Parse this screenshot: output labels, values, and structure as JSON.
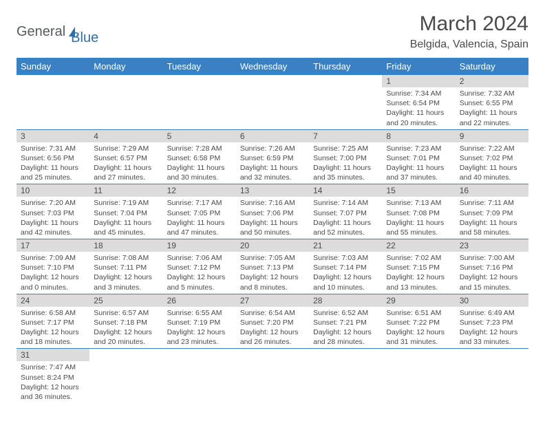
{
  "logo": {
    "part1": "General",
    "part2": "Blue"
  },
  "title": "March 2024",
  "location": "Belgida, Valencia, Spain",
  "colors": {
    "header_bg": "#3a81c4",
    "header_fg": "#ffffff",
    "daynum_bg": "#dcdcdc",
    "text": "#4a4a4a",
    "border": "#3a81c4"
  },
  "weekdays": [
    "Sunday",
    "Monday",
    "Tuesday",
    "Wednesday",
    "Thursday",
    "Friday",
    "Saturday"
  ],
  "weeks": [
    [
      null,
      null,
      null,
      null,
      null,
      {
        "n": "1",
        "sr": "Sunrise: 7:34 AM",
        "ss": "Sunset: 6:54 PM",
        "d1": "Daylight: 11 hours",
        "d2": "and 20 minutes."
      },
      {
        "n": "2",
        "sr": "Sunrise: 7:32 AM",
        "ss": "Sunset: 6:55 PM",
        "d1": "Daylight: 11 hours",
        "d2": "and 22 minutes."
      }
    ],
    [
      {
        "n": "3",
        "sr": "Sunrise: 7:31 AM",
        "ss": "Sunset: 6:56 PM",
        "d1": "Daylight: 11 hours",
        "d2": "and 25 minutes."
      },
      {
        "n": "4",
        "sr": "Sunrise: 7:29 AM",
        "ss": "Sunset: 6:57 PM",
        "d1": "Daylight: 11 hours",
        "d2": "and 27 minutes."
      },
      {
        "n": "5",
        "sr": "Sunrise: 7:28 AM",
        "ss": "Sunset: 6:58 PM",
        "d1": "Daylight: 11 hours",
        "d2": "and 30 minutes."
      },
      {
        "n": "6",
        "sr": "Sunrise: 7:26 AM",
        "ss": "Sunset: 6:59 PM",
        "d1": "Daylight: 11 hours",
        "d2": "and 32 minutes."
      },
      {
        "n": "7",
        "sr": "Sunrise: 7:25 AM",
        "ss": "Sunset: 7:00 PM",
        "d1": "Daylight: 11 hours",
        "d2": "and 35 minutes."
      },
      {
        "n": "8",
        "sr": "Sunrise: 7:23 AM",
        "ss": "Sunset: 7:01 PM",
        "d1": "Daylight: 11 hours",
        "d2": "and 37 minutes."
      },
      {
        "n": "9",
        "sr": "Sunrise: 7:22 AM",
        "ss": "Sunset: 7:02 PM",
        "d1": "Daylight: 11 hours",
        "d2": "and 40 minutes."
      }
    ],
    [
      {
        "n": "10",
        "sr": "Sunrise: 7:20 AM",
        "ss": "Sunset: 7:03 PM",
        "d1": "Daylight: 11 hours",
        "d2": "and 42 minutes."
      },
      {
        "n": "11",
        "sr": "Sunrise: 7:19 AM",
        "ss": "Sunset: 7:04 PM",
        "d1": "Daylight: 11 hours",
        "d2": "and 45 minutes."
      },
      {
        "n": "12",
        "sr": "Sunrise: 7:17 AM",
        "ss": "Sunset: 7:05 PM",
        "d1": "Daylight: 11 hours",
        "d2": "and 47 minutes."
      },
      {
        "n": "13",
        "sr": "Sunrise: 7:16 AM",
        "ss": "Sunset: 7:06 PM",
        "d1": "Daylight: 11 hours",
        "d2": "and 50 minutes."
      },
      {
        "n": "14",
        "sr": "Sunrise: 7:14 AM",
        "ss": "Sunset: 7:07 PM",
        "d1": "Daylight: 11 hours",
        "d2": "and 52 minutes."
      },
      {
        "n": "15",
        "sr": "Sunrise: 7:13 AM",
        "ss": "Sunset: 7:08 PM",
        "d1": "Daylight: 11 hours",
        "d2": "and 55 minutes."
      },
      {
        "n": "16",
        "sr": "Sunrise: 7:11 AM",
        "ss": "Sunset: 7:09 PM",
        "d1": "Daylight: 11 hours",
        "d2": "and 58 minutes."
      }
    ],
    [
      {
        "n": "17",
        "sr": "Sunrise: 7:09 AM",
        "ss": "Sunset: 7:10 PM",
        "d1": "Daylight: 12 hours",
        "d2": "and 0 minutes."
      },
      {
        "n": "18",
        "sr": "Sunrise: 7:08 AM",
        "ss": "Sunset: 7:11 PM",
        "d1": "Daylight: 12 hours",
        "d2": "and 3 minutes."
      },
      {
        "n": "19",
        "sr": "Sunrise: 7:06 AM",
        "ss": "Sunset: 7:12 PM",
        "d1": "Daylight: 12 hours",
        "d2": "and 5 minutes."
      },
      {
        "n": "20",
        "sr": "Sunrise: 7:05 AM",
        "ss": "Sunset: 7:13 PM",
        "d1": "Daylight: 12 hours",
        "d2": "and 8 minutes."
      },
      {
        "n": "21",
        "sr": "Sunrise: 7:03 AM",
        "ss": "Sunset: 7:14 PM",
        "d1": "Daylight: 12 hours",
        "d2": "and 10 minutes."
      },
      {
        "n": "22",
        "sr": "Sunrise: 7:02 AM",
        "ss": "Sunset: 7:15 PM",
        "d1": "Daylight: 12 hours",
        "d2": "and 13 minutes."
      },
      {
        "n": "23",
        "sr": "Sunrise: 7:00 AM",
        "ss": "Sunset: 7:16 PM",
        "d1": "Daylight: 12 hours",
        "d2": "and 15 minutes."
      }
    ],
    [
      {
        "n": "24",
        "sr": "Sunrise: 6:58 AM",
        "ss": "Sunset: 7:17 PM",
        "d1": "Daylight: 12 hours",
        "d2": "and 18 minutes."
      },
      {
        "n": "25",
        "sr": "Sunrise: 6:57 AM",
        "ss": "Sunset: 7:18 PM",
        "d1": "Daylight: 12 hours",
        "d2": "and 20 minutes."
      },
      {
        "n": "26",
        "sr": "Sunrise: 6:55 AM",
        "ss": "Sunset: 7:19 PM",
        "d1": "Daylight: 12 hours",
        "d2": "and 23 minutes."
      },
      {
        "n": "27",
        "sr": "Sunrise: 6:54 AM",
        "ss": "Sunset: 7:20 PM",
        "d1": "Daylight: 12 hours",
        "d2": "and 26 minutes."
      },
      {
        "n": "28",
        "sr": "Sunrise: 6:52 AM",
        "ss": "Sunset: 7:21 PM",
        "d1": "Daylight: 12 hours",
        "d2": "and 28 minutes."
      },
      {
        "n": "29",
        "sr": "Sunrise: 6:51 AM",
        "ss": "Sunset: 7:22 PM",
        "d1": "Daylight: 12 hours",
        "d2": "and 31 minutes."
      },
      {
        "n": "30",
        "sr": "Sunrise: 6:49 AM",
        "ss": "Sunset: 7:23 PM",
        "d1": "Daylight: 12 hours",
        "d2": "and 33 minutes."
      }
    ],
    [
      {
        "n": "31",
        "sr": "Sunrise: 7:47 AM",
        "ss": "Sunset: 8:24 PM",
        "d1": "Daylight: 12 hours",
        "d2": "and 36 minutes."
      },
      null,
      null,
      null,
      null,
      null,
      null
    ]
  ]
}
